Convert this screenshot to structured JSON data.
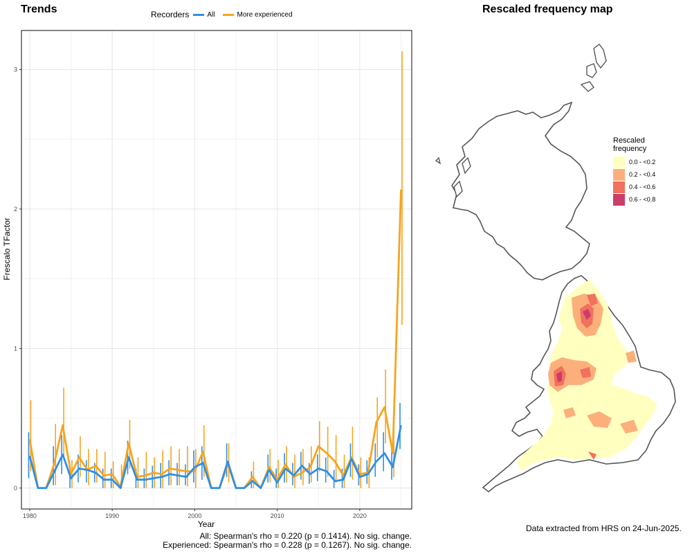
{
  "trends": {
    "title": "Trends",
    "legend_title": "Recorders",
    "stats_all": "All: Spearman's rho = 0.220 (p = 0.1414). No sig. change.",
    "stats_exp": "Experienced: Spearman's rho = 0.228 (p = 0.1267). No sig. change."
  },
  "map": {
    "title": "Rescaled frequency map",
    "legend_title_1": "Rescaled",
    "legend_title_2": "frequency",
    "legend": [
      {
        "label": "0.0 - <0.2",
        "color": "#ffffc0"
      },
      {
        "label": "0.2 - <0.4",
        "color": "#fbb07c"
      },
      {
        "label": "0.4 - <0.6",
        "color": "#f2705e"
      },
      {
        "label": "0.6 - <0.8",
        "color": "#cc3d6b"
      }
    ]
  },
  "footer": "Data extracted from HRS on 24-Jun-2025.",
  "chart_data": [
    {
      "type": "line",
      "title": "Trends",
      "xlabel": "Year",
      "ylabel": "Frescalo TFactor",
      "xlim": [
        1979.0,
        2026.3
      ],
      "ylim": [
        -0.15,
        3.28
      ],
      "xticks": [
        1980,
        1990,
        2000,
        2010,
        2020
      ],
      "yticks": [
        0,
        1,
        2,
        3
      ],
      "grid": true,
      "legend_position": "top",
      "x": [
        1980,
        1981,
        1982,
        1983,
        1984,
        1985,
        1986,
        1987,
        1988,
        1989,
        1990,
        1991,
        1992,
        1993,
        1994,
        1995,
        1996,
        1997,
        1998,
        1999,
        2000,
        2001,
        2002,
        2003,
        2004,
        2005,
        2006,
        2007,
        2008,
        2009,
        2010,
        2011,
        2012,
        2013,
        2014,
        2015,
        2016,
        2017,
        2018,
        2019,
        2020,
        2021,
        2022,
        2023,
        2024,
        2025
      ],
      "series": [
        {
          "name": "All",
          "color": "#2f8fe6",
          "values": [
            0.23,
            0.0,
            0.0,
            0.12,
            0.24,
            0.07,
            0.14,
            0.13,
            0.11,
            0.06,
            0.06,
            0.0,
            0.22,
            0.06,
            0.06,
            0.07,
            0.08,
            0.1,
            0.09,
            0.08,
            0.15,
            0.18,
            0.0,
            0.0,
            0.19,
            0.0,
            0.0,
            0.05,
            0.0,
            0.13,
            0.04,
            0.14,
            0.09,
            0.16,
            0.1,
            0.14,
            0.12,
            0.05,
            0.06,
            0.21,
            0.08,
            0.1,
            0.19,
            0.25,
            0.15,
            0.45
          ],
          "lower": [
            0.07,
            0.0,
            0.0,
            0.02,
            0.1,
            0.0,
            0.04,
            0.04,
            0.04,
            0.0,
            0.0,
            0.0,
            0.1,
            0.0,
            0.0,
            0.0,
            0.0,
            0.02,
            0.02,
            0.02,
            0.04,
            0.06,
            0.0,
            0.0,
            0.08,
            0.0,
            0.0,
            0.0,
            0.0,
            0.04,
            0.0,
            0.04,
            0.02,
            0.06,
            0.03,
            0.05,
            0.04,
            0.0,
            0.0,
            0.08,
            0.02,
            0.03,
            0.08,
            0.12,
            0.06,
            0.28
          ],
          "upper": [
            0.4,
            0.0,
            0.0,
            0.3,
            0.38,
            0.14,
            0.24,
            0.2,
            0.18,
            0.14,
            0.14,
            0.0,
            0.34,
            0.14,
            0.14,
            0.16,
            0.18,
            0.2,
            0.18,
            0.17,
            0.27,
            0.3,
            0.0,
            0.0,
            0.32,
            0.0,
            0.0,
            0.12,
            0.0,
            0.24,
            0.14,
            0.25,
            0.18,
            0.26,
            0.18,
            0.24,
            0.22,
            0.13,
            0.14,
            0.32,
            0.17,
            0.2,
            0.32,
            0.4,
            0.28,
            0.61
          ]
        },
        {
          "name": "More experienced",
          "color": "#f7a41d",
          "values": [
            0.35,
            0.0,
            0.0,
            0.18,
            0.45,
            0.1,
            0.22,
            0.13,
            0.16,
            0.09,
            0.1,
            0.01,
            0.32,
            0.08,
            0.09,
            0.11,
            0.1,
            0.14,
            0.13,
            0.12,
            0.12,
            0.26,
            0.0,
            0.0,
            0.17,
            0.0,
            0.0,
            0.08,
            0.0,
            0.15,
            0.06,
            0.17,
            0.08,
            0.11,
            0.15,
            0.3,
            0.25,
            0.19,
            0.09,
            0.22,
            0.1,
            0.11,
            0.47,
            0.58,
            0.25,
            2.14
          ],
          "lower": [
            0.12,
            0.0,
            0.0,
            0.02,
            0.22,
            0.0,
            0.08,
            0.02,
            0.04,
            0.0,
            0.0,
            0.0,
            0.14,
            0.0,
            0.0,
            0.0,
            0.0,
            0.02,
            0.02,
            0.01,
            0.0,
            0.08,
            0.0,
            0.0,
            0.04,
            0.0,
            0.0,
            0.0,
            0.0,
            0.04,
            0.0,
            0.04,
            0.0,
            0.02,
            0.04,
            0.12,
            0.08,
            0.04,
            0.0,
            0.06,
            0.0,
            0.0,
            0.22,
            0.32,
            0.08,
            1.17
          ],
          "upper": [
            0.63,
            0.0,
            0.0,
            0.46,
            0.72,
            0.2,
            0.37,
            0.28,
            0.28,
            0.26,
            0.19,
            0.17,
            0.49,
            0.22,
            0.26,
            0.22,
            0.27,
            0.3,
            0.28,
            0.3,
            0.28,
            0.45,
            0.0,
            0.0,
            0.32,
            0.0,
            0.0,
            0.19,
            0.0,
            0.28,
            0.2,
            0.3,
            0.24,
            0.28,
            0.3,
            0.48,
            0.44,
            0.38,
            0.24,
            0.44,
            0.22,
            0.22,
            0.65,
            0.85,
            0.48,
            3.13
          ]
        }
      ]
    },
    {
      "type": "map",
      "title": "Rescaled frequency map",
      "legend_title": "Rescaled frequency",
      "legend_position": "right",
      "categories": [
        "0.0 - <0.2",
        "0.2 - <0.4",
        "0.4 - <0.6",
        "0.6 - <0.8"
      ]
    }
  ]
}
